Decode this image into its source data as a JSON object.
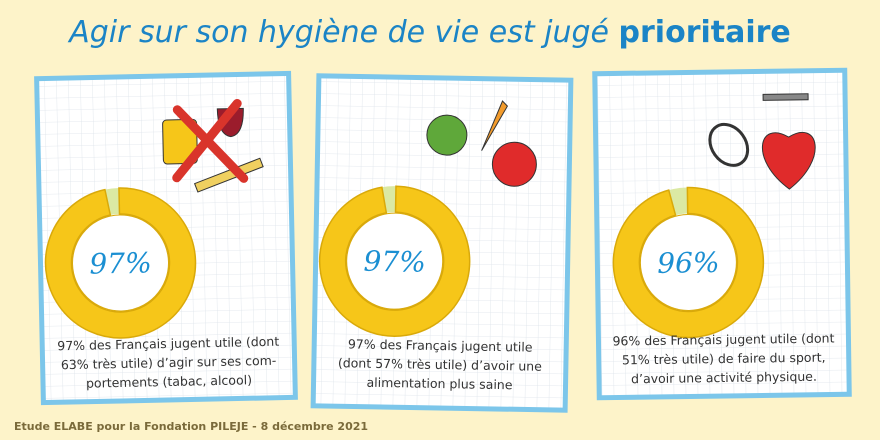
{
  "title": "Agir sur son hygiène de vie est jugé",
  "title_emphasis": "prioritaire",
  "source": "Etude ELABE pour la Fondation PILEJE - 8 décembre 2021",
  "chart_data": [
    {
      "type": "donut",
      "values": [
        97
      ],
      "value_labels": [
        "97%"
      ],
      "color": "#f6c619",
      "rest_color": "#dbe9a3",
      "caption": [
        "97% des Français jugent utile (dont",
        "63% très utile) d’agir sur ses com-",
        "portements (tabac, alcool)"
      ]
    },
    {
      "type": "donut",
      "values": [
        97
      ],
      "value_labels": [
        "97%"
      ],
      "color": "#f6c619",
      "rest_color": "#dbe9a3",
      "caption": [
        "97% des Français jugent utile",
        "(dont 57% très utile) d’avoir une",
        "alimentation plus saine"
      ]
    },
    {
      "type": "donut",
      "values": [
        96
      ],
      "value_labels": [
        "96%"
      ],
      "color": "#f6c619",
      "rest_color": "#dbe9a3",
      "caption": [
        "96% des Français jugent utile (dont",
        "51% très utile) de faire du sport,",
        "d’avoir une activité physique."
      ]
    }
  ]
}
